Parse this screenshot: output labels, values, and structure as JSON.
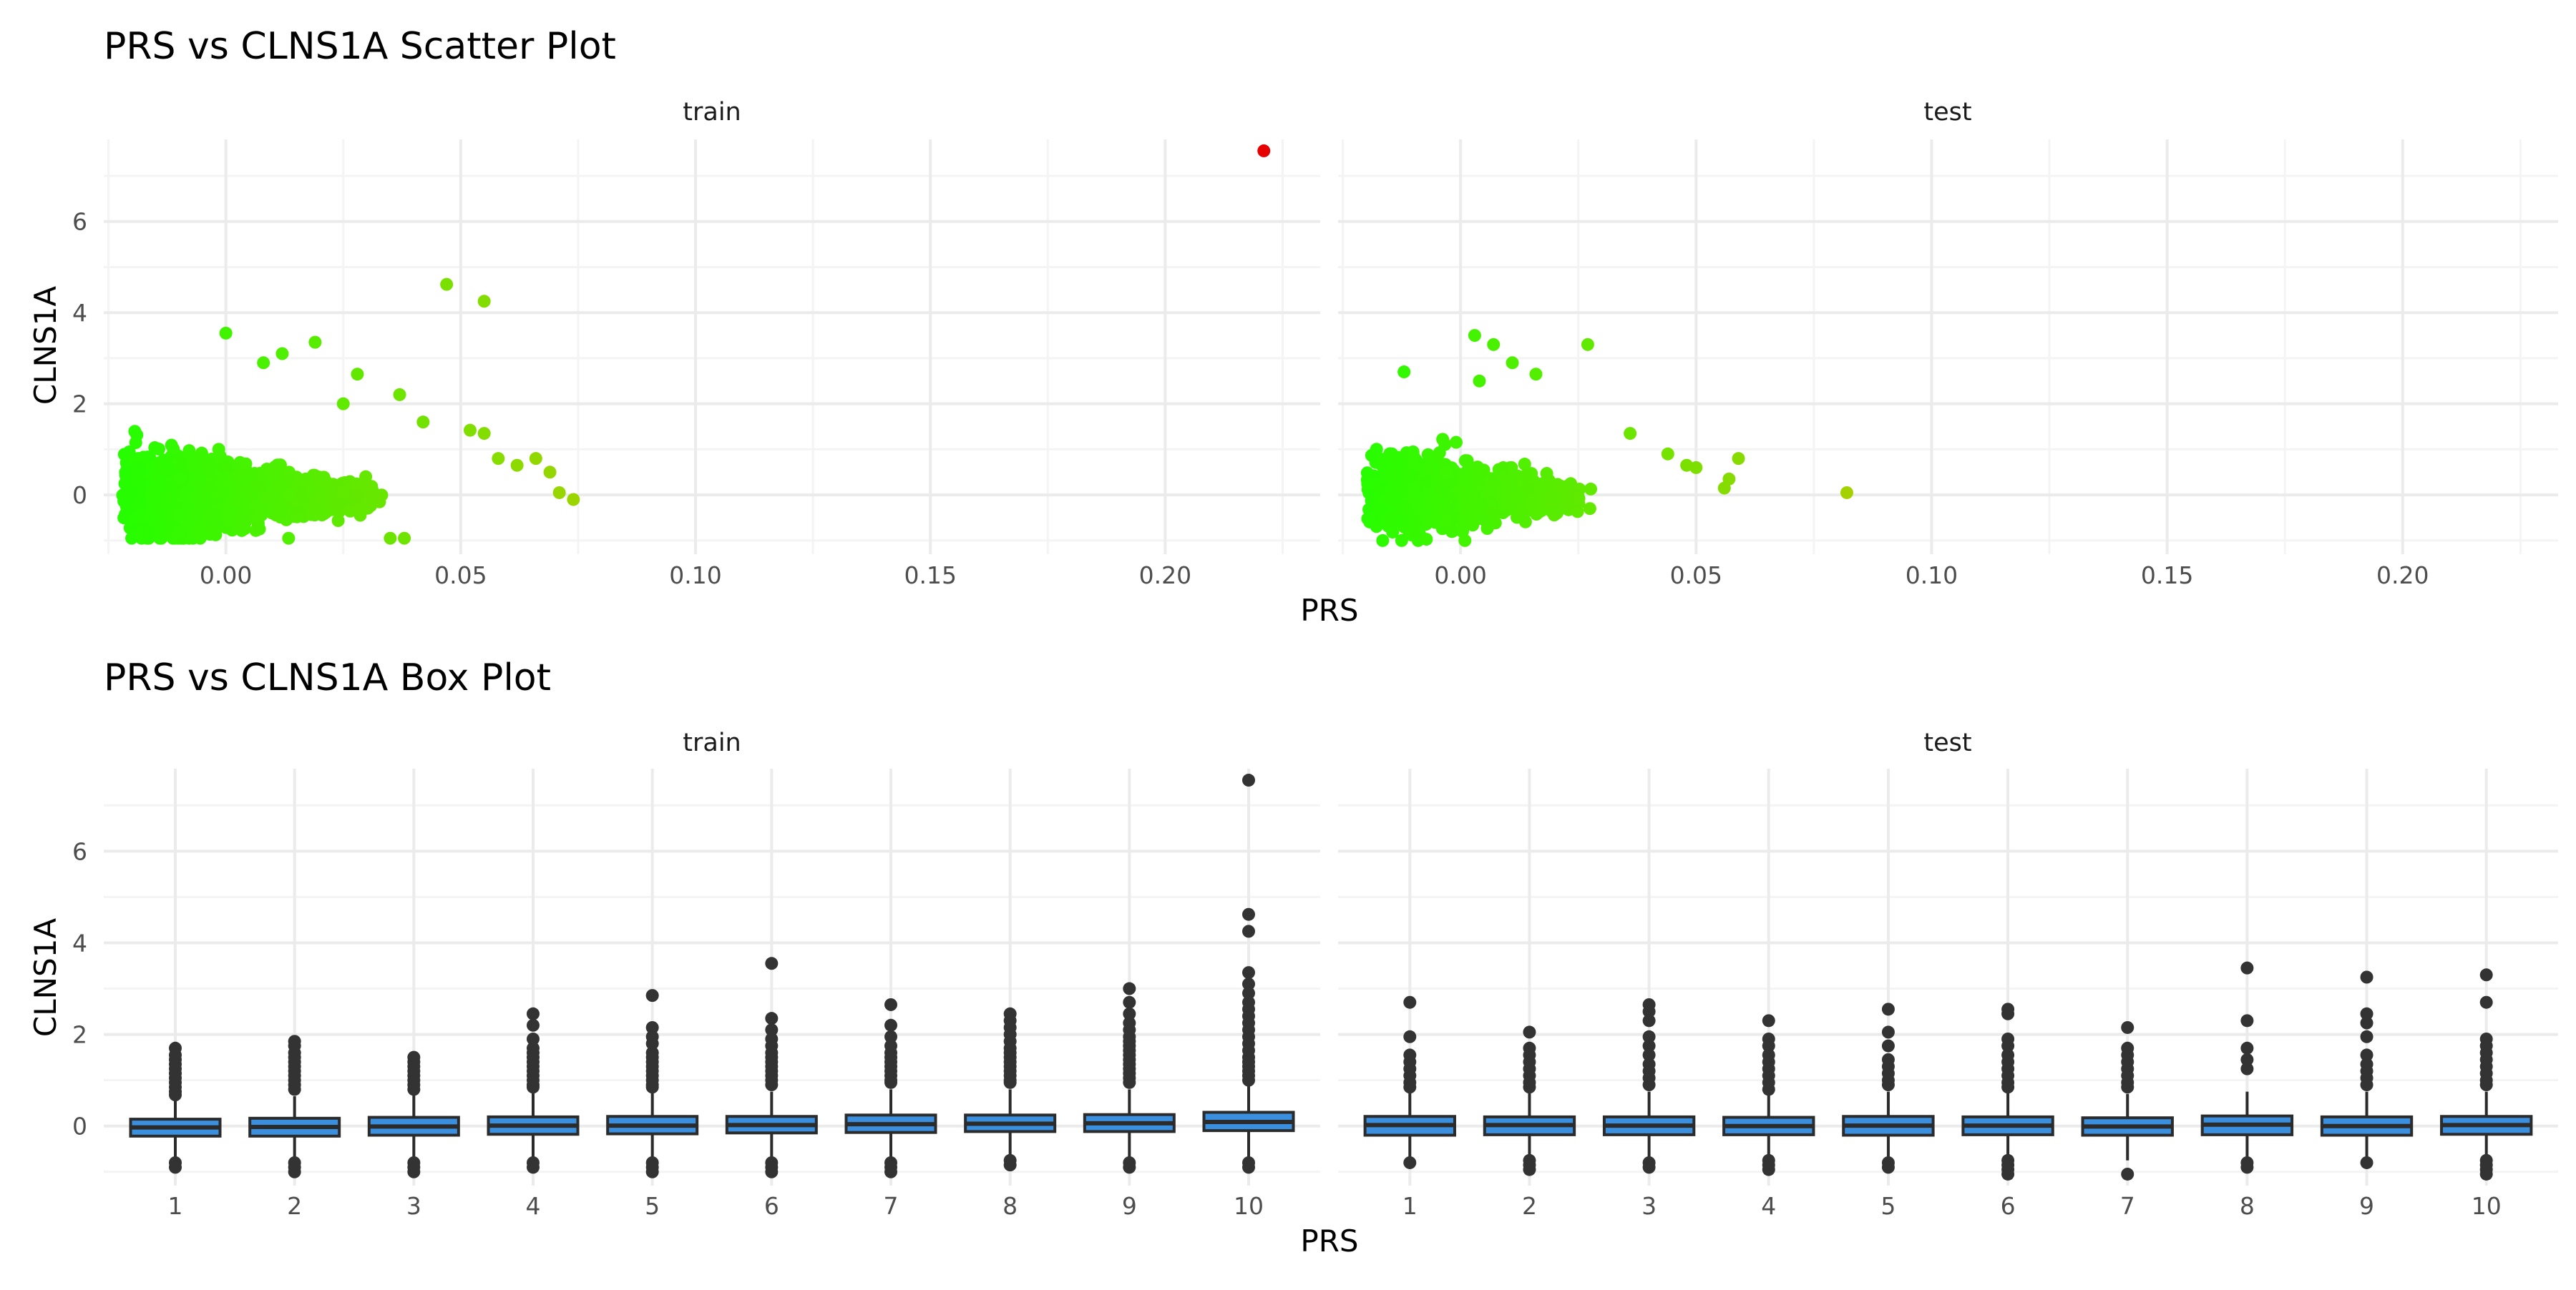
{
  "colors": {
    "grid_major": "#ebebeb",
    "grid_minor": "#f4f4f4",
    "axis_text": "#4d4d4d",
    "title_text": "#000000",
    "box_fill": "#3a8fdf",
    "box_stroke": "#2b2b2b",
    "outlier": "#333333",
    "gradient_low": "#22ff00",
    "gradient_mid": "#a8d000",
    "gradient_high": "#e60000"
  },
  "chart_data": [
    {
      "type": "scatter",
      "title": "PRS vs CLNS1A Scatter Plot",
      "xlabel": "PRS",
      "ylabel": "CLNS1A",
      "xlim": [
        -0.026,
        0.233
      ],
      "ylim": [
        -1.3,
        7.8
      ],
      "xticks": [
        0.0,
        0.05,
        0.1,
        0.15,
        0.2
      ],
      "xtick_labels": [
        "0.00",
        "0.05",
        "0.10",
        "0.15",
        "0.20"
      ],
      "yticks": [
        0,
        2,
        4,
        6
      ],
      "ytick_labels": [
        "0",
        "2",
        "4",
        "6"
      ],
      "color_by": "PRS (green-to-red gradient)",
      "grid": true,
      "panels": [
        {
          "name": "train",
          "cloud": {
            "x_range": [
              -0.022,
              0.06
            ],
            "y_range": [
              -0.95,
              2.3
            ],
            "approx_n": 2600
          },
          "points": [
            {
              "x": 0.0,
              "y": 3.55
            },
            {
              "x": 0.047,
              "y": 4.62
            },
            {
              "x": 0.055,
              "y": 4.25
            },
            {
              "x": 0.019,
              "y": 3.35
            },
            {
              "x": 0.012,
              "y": 3.1
            },
            {
              "x": 0.008,
              "y": 2.9
            },
            {
              "x": 0.028,
              "y": 2.65
            },
            {
              "x": 0.025,
              "y": 2.0
            },
            {
              "x": 0.037,
              "y": 2.2
            },
            {
              "x": 0.042,
              "y": 1.6
            },
            {
              "x": 0.052,
              "y": 1.42
            },
            {
              "x": 0.055,
              "y": 1.35
            },
            {
              "x": 0.058,
              "y": 0.8
            },
            {
              "x": 0.062,
              "y": 0.65
            },
            {
              "x": 0.066,
              "y": 0.8
            },
            {
              "x": 0.069,
              "y": 0.5
            },
            {
              "x": 0.071,
              "y": 0.05
            },
            {
              "x": 0.074,
              "y": -0.1
            },
            {
              "x": 0.035,
              "y": -0.95
            },
            {
              "x": 0.038,
              "y": -0.95
            },
            {
              "x": 0.221,
              "y": 7.55
            }
          ]
        },
        {
          "name": "test",
          "cloud": {
            "x_range": [
              -0.02,
              0.05
            ],
            "y_range": [
              -1.0,
              2.0
            ],
            "approx_n": 1300
          },
          "points": [
            {
              "x": 0.003,
              "y": 3.5
            },
            {
              "x": 0.007,
              "y": 3.3
            },
            {
              "x": 0.027,
              "y": 3.3
            },
            {
              "x": 0.011,
              "y": 2.9
            },
            {
              "x": -0.012,
              "y": 2.7
            },
            {
              "x": 0.016,
              "y": 2.65
            },
            {
              "x": 0.004,
              "y": 2.5
            },
            {
              "x": 0.036,
              "y": 1.35
            },
            {
              "x": 0.044,
              "y": 0.9
            },
            {
              "x": 0.048,
              "y": 0.65
            },
            {
              "x": 0.05,
              "y": 0.6
            },
            {
              "x": 0.059,
              "y": 0.8
            },
            {
              "x": 0.057,
              "y": 0.35
            },
            {
              "x": 0.056,
              "y": 0.15
            },
            {
              "x": 0.082,
              "y": 0.05
            }
          ]
        }
      ]
    },
    {
      "type": "box",
      "title": "PRS vs CLNS1A Box Plot",
      "xlabel": "PRS",
      "ylabel": "CLNS1A",
      "categories": [
        "1",
        "2",
        "3",
        "4",
        "5",
        "6",
        "7",
        "8",
        "9",
        "10"
      ],
      "ylim": [
        -1.3,
        7.8
      ],
      "yticks": [
        0,
        2,
        4,
        6
      ],
      "ytick_labels": [
        "0",
        "2",
        "4",
        "6"
      ],
      "grid": true,
      "panels": [
        {
          "name": "train",
          "boxes": [
            {
              "q1": -0.22,
              "median": -0.03,
              "q3": 0.15,
              "whisker_low": -0.75,
              "whisker_high": 0.6
            },
            {
              "q1": -0.22,
              "median": -0.02,
              "q3": 0.17,
              "whisker_low": -0.8,
              "whisker_high": 0.65
            },
            {
              "q1": -0.2,
              "median": -0.01,
              "q3": 0.19,
              "whisker_low": -0.8,
              "whisker_high": 0.7
            },
            {
              "q1": -0.18,
              "median": 0.01,
              "q3": 0.2,
              "whisker_low": -0.75,
              "whisker_high": 0.75
            },
            {
              "q1": -0.17,
              "median": 0.01,
              "q3": 0.21,
              "whisker_low": -0.75,
              "whisker_high": 0.75
            },
            {
              "q1": -0.15,
              "median": 0.02,
              "q3": 0.21,
              "whisker_low": -0.75,
              "whisker_high": 0.75
            },
            {
              "q1": -0.14,
              "median": 0.04,
              "q3": 0.24,
              "whisker_low": -0.75,
              "whisker_high": 0.8
            },
            {
              "q1": -0.12,
              "median": 0.05,
              "q3": 0.24,
              "whisker_low": -0.7,
              "whisker_high": 0.8
            },
            {
              "q1": -0.12,
              "median": 0.06,
              "q3": 0.25,
              "whisker_low": -0.7,
              "whisker_high": 0.8
            },
            {
              "q1": -0.1,
              "median": 0.09,
              "q3": 0.3,
              "whisker_low": -0.75,
              "whisker_high": 0.9
            }
          ],
          "outliers": [
            [
              1.7,
              1.55,
              1.45,
              1.35,
              1.25,
              1.15,
              1.05,
              0.95,
              0.85,
              0.75,
              0.68,
              -0.8,
              -0.9
            ],
            [
              1.85,
              1.75,
              1.6,
              1.5,
              1.4,
              1.3,
              1.2,
              1.1,
              1.0,
              0.9,
              0.8,
              -0.8,
              -0.9,
              -1.0
            ],
            [
              1.5,
              1.4,
              1.3,
              1.2,
              1.1,
              1.0,
              0.9,
              0.8,
              -0.8,
              -0.9,
              -1.0
            ],
            [
              2.45,
              2.2,
              1.9,
              1.7,
              1.6,
              1.5,
              1.4,
              1.3,
              1.2,
              1.1,
              1.0,
              0.9,
              0.85,
              -0.8,
              -0.9
            ],
            [
              2.85,
              2.15,
              1.95,
              1.8,
              1.6,
              1.5,
              1.4,
              1.3,
              1.2,
              1.1,
              1.0,
              0.9,
              0.85,
              -0.8,
              -0.9,
              -1.0
            ],
            [
              3.55,
              2.35,
              2.1,
              1.9,
              1.75,
              1.6,
              1.5,
              1.4,
              1.3,
              1.2,
              1.1,
              1.0,
              0.9,
              -0.8,
              -0.9,
              -1.0
            ],
            [
              2.65,
              2.2,
              1.95,
              1.75,
              1.6,
              1.5,
              1.4,
              1.3,
              1.2,
              1.1,
              1.0,
              0.95,
              -0.8,
              -0.9,
              -1.0
            ],
            [
              2.45,
              2.3,
              2.15,
              2.0,
              1.85,
              1.7,
              1.6,
              1.5,
              1.4,
              1.3,
              1.2,
              1.1,
              1.0,
              0.95,
              -0.75,
              -0.85
            ],
            [
              3.0,
              2.7,
              2.45,
              2.25,
              2.1,
              1.95,
              1.85,
              1.75,
              1.65,
              1.55,
              1.45,
              1.35,
              1.25,
              1.15,
              1.05,
              0.95,
              -0.8,
              -0.9
            ],
            [
              7.55,
              4.62,
              4.25,
              3.35,
              3.1,
              2.9,
              2.7,
              2.55,
              2.4,
              2.25,
              2.1,
              1.95,
              1.8,
              1.65,
              1.5,
              1.4,
              1.3,
              1.2,
              1.1,
              1.0,
              -0.8,
              -0.9
            ]
          ]
        },
        {
          "name": "test",
          "boxes": [
            {
              "q1": -0.2,
              "median": 0.02,
              "q3": 0.21,
              "whisker_low": -0.7,
              "whisker_high": 0.75
            },
            {
              "q1": -0.19,
              "median": 0.02,
              "q3": 0.2,
              "whisker_low": -0.7,
              "whisker_high": 0.75
            },
            {
              "q1": -0.19,
              "median": 0.01,
              "q3": 0.2,
              "whisker_low": -0.7,
              "whisker_high": 0.75
            },
            {
              "q1": -0.19,
              "median": 0.0,
              "q3": 0.19,
              "whisker_low": -0.7,
              "whisker_high": 0.7
            },
            {
              "q1": -0.2,
              "median": 0.01,
              "q3": 0.21,
              "whisker_low": -0.7,
              "whisker_high": 0.75
            },
            {
              "q1": -0.19,
              "median": 0.01,
              "q3": 0.2,
              "whisker_low": -0.7,
              "whisker_high": 0.75
            },
            {
              "q1": -0.2,
              "median": -0.01,
              "q3": 0.18,
              "whisker_low": -0.75,
              "whisker_high": 0.7
            },
            {
              "q1": -0.19,
              "median": 0.03,
              "q3": 0.22,
              "whisker_low": -0.7,
              "whisker_high": 0.75
            },
            {
              "q1": -0.2,
              "median": 0.0,
              "q3": 0.2,
              "whisker_low": -0.7,
              "whisker_high": 0.75
            },
            {
              "q1": -0.18,
              "median": 0.02,
              "q3": 0.21,
              "whisker_low": -0.7,
              "whisker_high": 0.75
            }
          ],
          "outliers": [
            [
              2.7,
              1.95,
              1.55,
              1.4,
              1.25,
              1.1,
              0.95,
              0.85,
              -0.8
            ],
            [
              2.05,
              1.7,
              1.55,
              1.4,
              1.25,
              1.1,
              0.95,
              0.85,
              -0.75,
              -0.85,
              -0.95
            ],
            [
              2.65,
              2.5,
              2.3,
              1.95,
              1.75,
              1.55,
              1.35,
              1.2,
              1.05,
              0.9,
              -0.8,
              -0.9
            ],
            [
              2.3,
              1.9,
              1.75,
              1.55,
              1.4,
              1.25,
              1.1,
              0.95,
              0.8,
              -0.75,
              -0.85,
              -0.95
            ],
            [
              2.55,
              2.05,
              1.75,
              1.45,
              1.3,
              1.15,
              1.0,
              0.9,
              -0.8,
              -0.9
            ],
            [
              2.55,
              2.45,
              1.9,
              1.75,
              1.55,
              1.4,
              1.25,
              1.1,
              0.95,
              0.85,
              -0.75,
              -0.85,
              -0.95,
              -1.05
            ],
            [
              2.15,
              1.7,
              1.55,
              1.4,
              1.25,
              1.1,
              0.95,
              0.85,
              -1.05
            ],
            [
              3.45,
              2.3,
              1.7,
              1.45,
              1.25,
              -0.8,
              -0.9
            ],
            [
              3.25,
              2.45,
              2.25,
              1.95,
              1.55,
              1.35,
              1.2,
              1.05,
              0.9,
              -0.8
            ],
            [
              3.3,
              2.7,
              1.9,
              1.75,
              1.6,
              1.45,
              1.3,
              1.15,
              1.0,
              0.9,
              -0.75,
              -0.85,
              -0.95,
              -1.05
            ]
          ]
        }
      ]
    }
  ]
}
